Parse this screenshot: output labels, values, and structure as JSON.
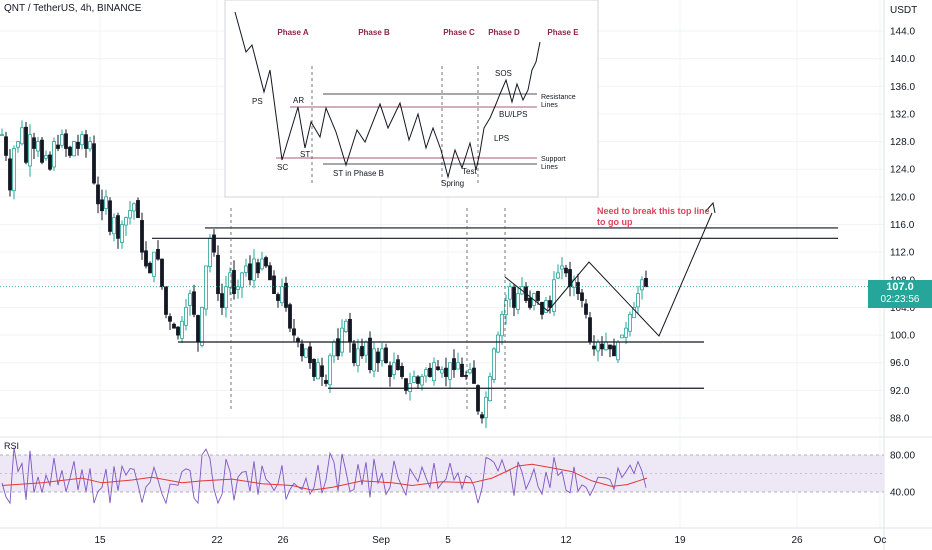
{
  "header": {
    "symbol_line": "QNT / TetherUS, 4h, BINANCE",
    "currency": "USDT"
  },
  "price_tag": {
    "price": "107.0",
    "countdown": "02:23:56",
    "color": "#26a69a"
  },
  "rsi": {
    "label": "RSI",
    "upper": "80.00",
    "lower": "40.00"
  },
  "annotation": {
    "lines": [
      "Need to break this top line",
      "to go up"
    ],
    "color": "#e0435a"
  },
  "colors": {
    "up": "#26a69a",
    "down": "#131722",
    "rsi_line": "#7e57c2",
    "rsi_ma": "#e53935",
    "rsi_band": "#ede7f6"
  },
  "wyckoff_inset": {
    "phases": [
      "Phase A",
      "Phase B",
      "Phase C",
      "Phase D",
      "Phase E"
    ],
    "labels": {
      "ps": "PS",
      "ar": "AR",
      "sc": "SC",
      "st": "ST",
      "st_b": "ST in Phase B",
      "spring": "Spring",
      "test": "Test",
      "sos": "SOS",
      "bu_lps": "BU/LPS",
      "lps": "LPS",
      "resistance": [
        "Resistance",
        "Lines"
      ],
      "support": [
        "Support",
        "Lines"
      ]
    }
  },
  "chart_data": {
    "type": "candlestick",
    "title": "QNT / TetherUS, 4h, BINANCE",
    "y_axis": {
      "ticks": [
        "144.0",
        "140.0",
        "136.0",
        "132.0",
        "128.0",
        "124.0",
        "120.0",
        "116.0",
        "112.0",
        "108.0",
        "104.0",
        "100.0",
        "96.0",
        "92.0",
        "88.0"
      ],
      "range": [
        86.0,
        147.0
      ]
    },
    "x_axis": {
      "ticks": [
        "15",
        "22",
        "26",
        "Sep",
        "5",
        "12",
        "19",
        "26",
        "Oc"
      ]
    },
    "last_price": 107.0,
    "horizontal_levels": [
      115.5,
      114.0,
      99.0,
      92.3
    ],
    "price_path": [
      [
        0,
        129
      ],
      [
        4,
        126
      ],
      [
        8,
        121
      ],
      [
        12,
        127
      ],
      [
        16,
        128
      ],
      [
        20,
        130
      ],
      [
        24,
        125
      ],
      [
        28,
        129
      ],
      [
        32,
        127
      ],
      [
        36,
        128
      ],
      [
        40,
        125
      ],
      [
        44,
        126
      ],
      [
        48,
        124
      ],
      [
        52,
        128
      ],
      [
        56,
        127
      ],
      [
        60,
        129
      ],
      [
        64,
        127
      ],
      [
        68,
        126
      ],
      [
        72,
        128
      ],
      [
        76,
        127
      ],
      [
        80,
        129
      ],
      [
        84,
        127
      ],
      [
        88,
        128
      ],
      [
        92,
        122
      ],
      [
        96,
        119
      ],
      [
        100,
        118
      ],
      [
        104,
        120
      ],
      [
        108,
        115
      ],
      [
        112,
        117
      ],
      [
        116,
        114
      ],
      [
        120,
        116
      ],
      [
        124,
        117
      ],
      [
        128,
        118
      ],
      [
        132,
        119
      ],
      [
        136,
        117
      ],
      [
        140,
        112
      ],
      [
        144,
        110
      ],
      [
        148,
        109
      ],
      [
        152,
        112
      ],
      [
        156,
        111
      ],
      [
        160,
        107
      ],
      [
        164,
        103
      ],
      [
        168,
        102
      ],
      [
        172,
        101
      ],
      [
        176,
        100
      ],
      [
        180,
        102
      ],
      [
        184,
        104
      ],
      [
        188,
        106
      ],
      [
        192,
        103
      ],
      [
        196,
        99
      ],
      [
        200,
        104
      ],
      [
        204,
        110
      ],
      [
        208,
        114
      ],
      [
        212,
        112
      ],
      [
        216,
        106
      ],
      [
        220,
        104
      ],
      [
        224,
        107
      ],
      [
        228,
        109
      ],
      [
        232,
        106
      ],
      [
        236,
        107
      ],
      [
        240,
        109
      ],
      [
        244,
        110
      ],
      [
        248,
        108
      ],
      [
        252,
        111
      ],
      [
        256,
        109
      ],
      [
        260,
        111
      ],
      [
        264,
        110
      ],
      [
        268,
        108
      ],
      [
        272,
        106
      ],
      [
        276,
        105
      ],
      [
        280,
        107
      ],
      [
        284,
        104
      ],
      [
        288,
        101
      ],
      [
        292,
        100
      ],
      [
        296,
        99
      ],
      [
        300,
        97
      ],
      [
        304,
        98
      ],
      [
        308,
        96
      ],
      [
        312,
        94
      ],
      [
        316,
        96
      ],
      [
        320,
        94
      ],
      [
        324,
        93
      ],
      [
        328,
        97
      ],
      [
        332,
        99
      ],
      [
        336,
        97
      ],
      [
        340,
        101
      ],
      [
        344,
        102
      ],
      [
        348,
        99
      ],
      [
        352,
        96
      ],
      [
        356,
        98
      ],
      [
        360,
        97
      ],
      [
        364,
        99
      ],
      [
        368,
        95
      ],
      [
        372,
        98
      ],
      [
        376,
        96
      ],
      [
        380,
        98
      ],
      [
        384,
        96
      ],
      [
        388,
        94
      ],
      [
        392,
        96
      ],
      [
        396,
        95
      ],
      [
        400,
        94
      ],
      [
        404,
        92
      ],
      [
        408,
        93
      ],
      [
        412,
        94
      ],
      [
        416,
        93
      ],
      [
        420,
        94
      ],
      [
        424,
        95
      ],
      [
        428,
        94
      ],
      [
        432,
        96
      ],
      [
        436,
        95
      ],
      [
        440,
        95
      ],
      [
        444,
        94
      ],
      [
        448,
        96
      ],
      [
        452,
        95
      ],
      [
        456,
        96
      ],
      [
        460,
        94
      ],
      [
        464,
        94
      ],
      [
        468,
        95
      ],
      [
        472,
        93
      ],
      [
        476,
        89
      ],
      [
        480,
        88
      ],
      [
        484,
        91
      ],
      [
        488,
        94
      ],
      [
        492,
        98
      ],
      [
        496,
        100
      ],
      [
        500,
        103
      ],
      [
        504,
        105
      ],
      [
        508,
        107
      ],
      [
        512,
        104
      ],
      [
        516,
        106
      ],
      [
        520,
        107
      ],
      [
        524,
        105
      ],
      [
        528,
        104
      ],
      [
        532,
        106
      ],
      [
        536,
        105
      ],
      [
        540,
        103
      ],
      [
        544,
        105
      ],
      [
        548,
        104
      ],
      [
        552,
        108
      ],
      [
        556,
        109
      ],
      [
        560,
        110
      ],
      [
        564,
        109
      ],
      [
        568,
        107
      ],
      [
        572,
        108
      ],
      [
        576,
        106
      ],
      [
        580,
        105
      ],
      [
        584,
        103
      ],
      [
        588,
        99
      ],
      [
        592,
        98
      ],
      [
        596,
        99
      ],
      [
        600,
        98
      ],
      [
        604,
        99
      ],
      [
        608,
        98
      ],
      [
        612,
        97
      ],
      [
        616,
        99
      ],
      [
        620,
        100
      ],
      [
        624,
        101
      ],
      [
        628,
        103
      ],
      [
        632,
        104
      ],
      [
        636,
        106
      ],
      [
        640,
        108
      ],
      [
        644,
        107
      ]
    ],
    "rsi_ma_path": [
      [
        0,
        47
      ],
      [
        40,
        50
      ],
      [
        80,
        55
      ],
      [
        100,
        50
      ],
      [
        130,
        53
      ],
      [
        150,
        56
      ],
      [
        180,
        50
      ],
      [
        200,
        52
      ],
      [
        230,
        54
      ],
      [
        260,
        49
      ],
      [
        290,
        47
      ],
      [
        310,
        42
      ],
      [
        330,
        45
      ],
      [
        360,
        52
      ],
      [
        390,
        50
      ],
      [
        410,
        47
      ],
      [
        440,
        51
      ],
      [
        470,
        50
      ],
      [
        490,
        55
      ],
      [
        500,
        60
      ],
      [
        515,
        68
      ],
      [
        530,
        70
      ],
      [
        550,
        66
      ],
      [
        570,
        62
      ],
      [
        590,
        52
      ],
      [
        610,
        46
      ],
      [
        625,
        48
      ],
      [
        645,
        55
      ]
    ]
  }
}
